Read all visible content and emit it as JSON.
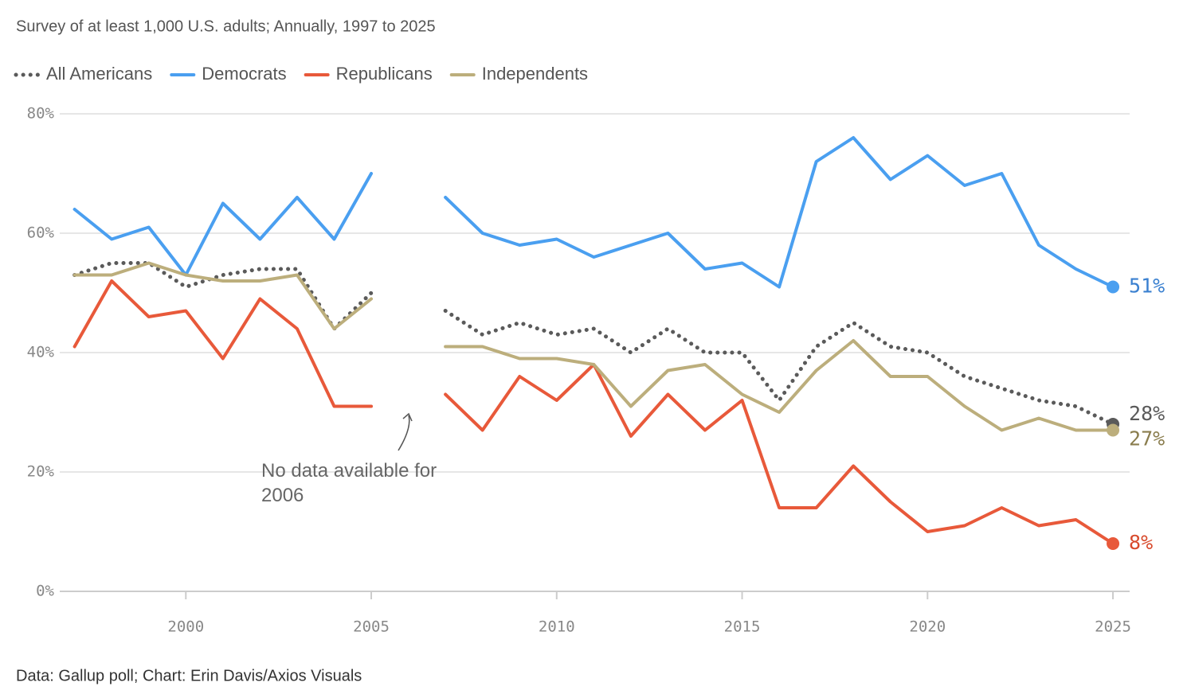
{
  "chart_data": {
    "type": "line",
    "subtitle": "Survey of at least 1,000 U.S. adults; Annually, 1997 to 2025",
    "source": "Data: Gallup poll; Chart: Erin Davis/Axios Visuals",
    "annotation": "No data available for 2006",
    "x": [
      1997,
      1998,
      1999,
      2000,
      2001,
      2002,
      2003,
      2004,
      2005,
      2006,
      2007,
      2008,
      2009,
      2010,
      2011,
      2012,
      2013,
      2014,
      2015,
      2016,
      2017,
      2018,
      2019,
      2020,
      2021,
      2022,
      2023,
      2024,
      2025
    ],
    "series": [
      {
        "name": "All Americans",
        "color": "#5a5a5a",
        "dash": true,
        "label_color": "#5a5a5a",
        "end_label": "28%",
        "values": [
          53,
          55,
          55,
          51,
          53,
          54,
          54,
          44,
          50,
          null,
          47,
          43,
          45,
          43,
          44,
          40,
          44,
          40,
          40,
          32,
          41,
          45,
          41,
          40,
          36,
          34,
          32,
          31,
          28
        ]
      },
      {
        "name": "Democrats",
        "color": "#4a9ff0",
        "dash": false,
        "label_color": "#3a80d0",
        "end_label": "51%",
        "values": [
          64,
          59,
          61,
          53,
          65,
          59,
          66,
          59,
          70,
          null,
          66,
          60,
          58,
          59,
          56,
          58,
          60,
          54,
          55,
          51,
          72,
          76,
          69,
          73,
          68,
          70,
          58,
          54,
          51
        ]
      },
      {
        "name": "Republicans",
        "color": "#e8593a",
        "dash": false,
        "label_color": "#d84a2c",
        "end_label": "8%",
        "values": [
          41,
          52,
          46,
          47,
          39,
          49,
          44,
          31,
          31,
          null,
          33,
          27,
          36,
          32,
          38,
          26,
          33,
          27,
          32,
          14,
          14,
          21,
          15,
          10,
          11,
          14,
          11,
          12,
          8
        ]
      },
      {
        "name": "Independents",
        "color": "#bcae7c",
        "dash": false,
        "label_color": "#8a7d4e",
        "end_label": "27%",
        "values": [
          53,
          53,
          55,
          53,
          52,
          52,
          53,
          44,
          49,
          null,
          41,
          41,
          39,
          39,
          38,
          31,
          37,
          38,
          33,
          30,
          37,
          42,
          36,
          36,
          31,
          27,
          29,
          27,
          27
        ]
      }
    ],
    "xlim": [
      1996.6,
      2025.45
    ],
    "xticks": [
      2000,
      2005,
      2010,
      2015,
      2020,
      2025
    ],
    "ylim": [
      0,
      80
    ],
    "yticks": [
      {
        "value": 0,
        "label": "0%"
      },
      {
        "value": 20,
        "label": "20%"
      },
      {
        "value": 40,
        "label": "40%"
      },
      {
        "value": 60,
        "label": "60%"
      },
      {
        "value": 80,
        "label": "80%"
      }
    ],
    "grid": true
  }
}
